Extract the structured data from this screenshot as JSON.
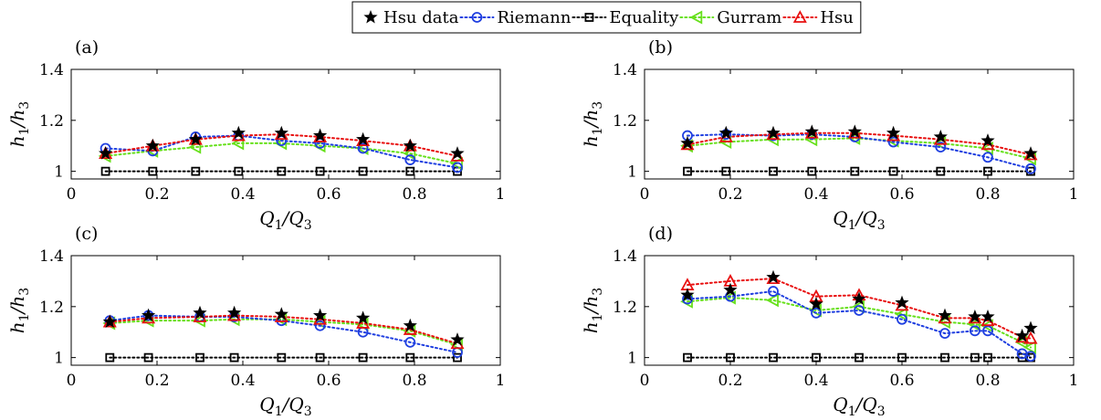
{
  "legend": [
    {
      "label": "Hsu data",
      "marker": "star",
      "color": "#000000",
      "line": "none"
    },
    {
      "label": "Riemann",
      "marker": "circle",
      "color": "#1f3fe0",
      "line": "dotted"
    },
    {
      "label": "Equality",
      "marker": "square",
      "color": "#000000",
      "line": "dotted"
    },
    {
      "label": "Gurram",
      "marker": "triangle-left",
      "color": "#66e01a",
      "line": "dotted"
    },
    {
      "label": "Hsu",
      "marker": "triangle-up",
      "color": "#e81010",
      "line": "dotted"
    }
  ],
  "chart_data": [
    {
      "type": "line",
      "panel": "(a)",
      "xlabel": "Q1/Q3",
      "ylabel": "h1/h3",
      "xlim": [
        0,
        1
      ],
      "ylim": [
        0.97,
        1.4
      ],
      "xticks": [
        "0",
        "0.2",
        "0.4",
        "0.6",
        "0.8",
        "1"
      ],
      "yticks": [
        "1",
        "1.2",
        "1.4"
      ],
      "series": [
        {
          "name": "Hsu data",
          "x": [
            0.08,
            0.19,
            0.29,
            0.39,
            0.49,
            0.58,
            0.68,
            0.79,
            0.9
          ],
          "y": [
            1.07,
            1.1,
            1.125,
            1.15,
            1.15,
            1.14,
            1.125,
            1.1,
            1.07
          ]
        },
        {
          "name": "Riemann",
          "x": [
            0.08,
            0.19,
            0.29,
            0.39,
            0.49,
            0.58,
            0.68,
            0.79,
            0.9
          ],
          "y": [
            1.09,
            1.08,
            1.135,
            1.14,
            1.12,
            1.11,
            1.09,
            1.045,
            1.015
          ]
        },
        {
          "name": "Equality",
          "x": [
            0.08,
            0.19,
            0.29,
            0.39,
            0.49,
            0.58,
            0.68,
            0.79,
            0.9
          ],
          "y": [
            1,
            1,
            1,
            1,
            1,
            1,
            1,
            1,
            1
          ]
        },
        {
          "name": "Gurram",
          "x": [
            0.08,
            0.19,
            0.29,
            0.39,
            0.49,
            0.58,
            0.68,
            0.79,
            0.9
          ],
          "y": [
            1.06,
            1.08,
            1.095,
            1.11,
            1.11,
            1.1,
            1.09,
            1.07,
            1.03
          ]
        },
        {
          "name": "Hsu",
          "x": [
            0.08,
            0.19,
            0.29,
            0.39,
            0.49,
            0.58,
            0.68,
            0.79,
            0.9
          ],
          "y": [
            1.07,
            1.1,
            1.125,
            1.14,
            1.145,
            1.135,
            1.12,
            1.1,
            1.06
          ]
        }
      ]
    },
    {
      "type": "line",
      "panel": "(b)",
      "xlabel": "Q1/Q3",
      "ylabel": "h1/h3",
      "xlim": [
        0,
        1
      ],
      "ylim": [
        0.97,
        1.4
      ],
      "xticks": [
        "0",
        "0.2",
        "0.4",
        "0.6",
        "0.8",
        "1"
      ],
      "yticks": [
        "1",
        "1.2",
        "1.4"
      ],
      "series": [
        {
          "name": "Hsu data",
          "x": [
            0.1,
            0.19,
            0.3,
            0.39,
            0.49,
            0.58,
            0.69,
            0.8,
            0.9
          ],
          "y": [
            1.11,
            1.15,
            1.15,
            1.155,
            1.155,
            1.15,
            1.135,
            1.12,
            1.07
          ]
        },
        {
          "name": "Riemann",
          "x": [
            0.1,
            0.19,
            0.3,
            0.39,
            0.49,
            0.58,
            0.69,
            0.8,
            0.9
          ],
          "y": [
            1.14,
            1.145,
            1.14,
            1.145,
            1.135,
            1.115,
            1.095,
            1.055,
            1.01
          ]
        },
        {
          "name": "Equality",
          "x": [
            0.1,
            0.19,
            0.3,
            0.39,
            0.49,
            0.58,
            0.69,
            0.8,
            0.9
          ],
          "y": [
            1,
            1,
            1,
            1,
            1,
            1,
            1,
            1,
            1
          ]
        },
        {
          "name": "Gurram",
          "x": [
            0.1,
            0.19,
            0.3,
            0.39,
            0.49,
            0.58,
            0.69,
            0.8,
            0.9
          ],
          "y": [
            1.1,
            1.115,
            1.125,
            1.125,
            1.13,
            1.12,
            1.11,
            1.09,
            1.05
          ]
        },
        {
          "name": "Hsu",
          "x": [
            0.1,
            0.19,
            0.3,
            0.39,
            0.49,
            0.58,
            0.69,
            0.8,
            0.9
          ],
          "y": [
            1.105,
            1.135,
            1.145,
            1.15,
            1.15,
            1.14,
            1.125,
            1.105,
            1.065
          ]
        }
      ]
    },
    {
      "type": "line",
      "panel": "(c)",
      "xlabel": "Q1/Q3",
      "ylabel": "h1/h3",
      "xlim": [
        0,
        1
      ],
      "ylim": [
        0.97,
        1.4
      ],
      "xticks": [
        "0",
        "0.2",
        "0.4",
        "0.6",
        "0.8",
        "1"
      ],
      "yticks": [
        "1",
        "1.2",
        "1.4"
      ],
      "series": [
        {
          "name": "Hsu data",
          "x": [
            0.09,
            0.18,
            0.3,
            0.38,
            0.49,
            0.58,
            0.68,
            0.79,
            0.9
          ],
          "y": [
            1.14,
            1.165,
            1.175,
            1.175,
            1.17,
            1.165,
            1.155,
            1.125,
            1.07
          ]
        },
        {
          "name": "Riemann",
          "x": [
            0.09,
            0.18,
            0.3,
            0.38,
            0.49,
            0.58,
            0.68,
            0.79,
            0.9
          ],
          "y": [
            1.145,
            1.165,
            1.16,
            1.16,
            1.145,
            1.125,
            1.1,
            1.06,
            1.02
          ]
        },
        {
          "name": "Equality",
          "x": [
            0.09,
            0.18,
            0.3,
            0.38,
            0.49,
            0.58,
            0.68,
            0.79,
            0.9
          ],
          "y": [
            1,
            1,
            1,
            1,
            1,
            1,
            1,
            1,
            1
          ]
        },
        {
          "name": "Gurram",
          "x": [
            0.09,
            0.18,
            0.3,
            0.38,
            0.49,
            0.58,
            0.68,
            0.79,
            0.9
          ],
          "y": [
            1.135,
            1.145,
            1.145,
            1.15,
            1.15,
            1.14,
            1.13,
            1.105,
            1.05
          ]
        },
        {
          "name": "Hsu",
          "x": [
            0.09,
            0.18,
            0.3,
            0.38,
            0.49,
            0.58,
            0.68,
            0.79,
            0.9
          ],
          "y": [
            1.14,
            1.155,
            1.16,
            1.165,
            1.16,
            1.15,
            1.135,
            1.11,
            1.055
          ]
        }
      ]
    },
    {
      "type": "line",
      "panel": "(d)",
      "xlabel": "Q1/Q3",
      "ylabel": "h1/h3",
      "xlim": [
        0,
        1
      ],
      "ylim": [
        0.97,
        1.4
      ],
      "xticks": [
        "0",
        "0.2",
        "0.4",
        "0.6",
        "0.8",
        "1"
      ],
      "yticks": [
        "1",
        "1.2",
        "1.4"
      ],
      "series": [
        {
          "name": "Hsu data",
          "x": [
            0.1,
            0.2,
            0.3,
            0.4,
            0.5,
            0.6,
            0.7,
            0.77,
            0.8,
            0.88,
            0.9
          ],
          "y": [
            1.245,
            1.265,
            1.315,
            1.21,
            1.23,
            1.215,
            1.165,
            1.16,
            1.16,
            1.085,
            1.115
          ]
        },
        {
          "name": "Riemann",
          "x": [
            0.1,
            0.2,
            0.3,
            0.4,
            0.5,
            0.6,
            0.7,
            0.77,
            0.8,
            0.88,
            0.9
          ],
          "y": [
            1.23,
            1.24,
            1.26,
            1.175,
            1.185,
            1.15,
            1.095,
            1.105,
            1.105,
            1.015,
            1.005
          ]
        },
        {
          "name": "Equality",
          "x": [
            0.1,
            0.2,
            0.3,
            0.4,
            0.5,
            0.6,
            0.7,
            0.77,
            0.8,
            0.88,
            0.9
          ],
          "y": [
            1,
            1,
            1,
            1,
            1,
            1,
            1,
            1,
            1,
            1,
            1
          ]
        },
        {
          "name": "Gurram",
          "x": [
            0.1,
            0.2,
            0.3,
            0.4,
            0.5,
            0.6,
            0.7,
            0.77,
            0.8,
            0.88,
            0.9
          ],
          "y": [
            1.22,
            1.235,
            1.225,
            1.185,
            1.2,
            1.17,
            1.14,
            1.13,
            1.125,
            1.06,
            1.04
          ]
        },
        {
          "name": "Hsu",
          "x": [
            0.1,
            0.2,
            0.3,
            0.4,
            0.5,
            0.6,
            0.7,
            0.77,
            0.8,
            0.88,
            0.9
          ],
          "y": [
            1.285,
            1.3,
            1.31,
            1.24,
            1.245,
            1.205,
            1.155,
            1.155,
            1.145,
            1.08,
            1.075
          ]
        }
      ]
    }
  ]
}
